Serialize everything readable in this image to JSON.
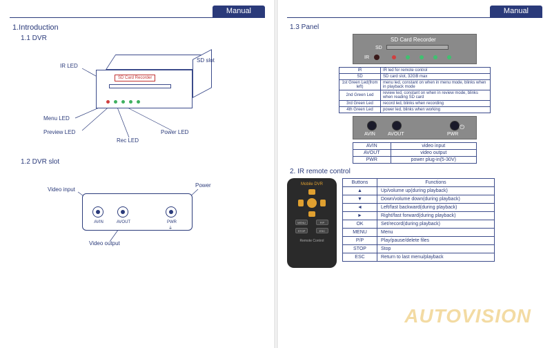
{
  "header": {
    "title": "Manual"
  },
  "left": {
    "sec1": "1.Introduction",
    "sub11": "1.1 DVR",
    "dvr": {
      "slot_title": "SD Card Recorder",
      "callouts": {
        "ir_led": "IR LED",
        "sd_slot": "SD slot",
        "menu_led": "Menu LED",
        "preview_led": "Preview LED",
        "rec_led": "Rec LED",
        "power_led": "Power LED"
      },
      "led_colors": [
        "#d04040",
        "#40b060",
        "#40b060",
        "#40b060",
        "#40b060"
      ]
    },
    "sub12": "1.2 DVR slot",
    "slot": {
      "video_in": "Video input",
      "video_out": "Video output",
      "power": "Power",
      "avin": "AVIN",
      "avout": "AVOUT",
      "pwr": "PWR"
    }
  },
  "right": {
    "sub13": "1.3 Panel",
    "front_panel": {
      "title": "SD Card Recorder",
      "ir": "IR",
      "sd": "SD",
      "led_colors": [
        "#d04040",
        "#40c070",
        "#40c070",
        "#40c070",
        "#40c070"
      ]
    },
    "led_table": [
      [
        "IR",
        "IR led for remote control"
      ],
      [
        "SD",
        "SD card slot, 32GB max"
      ],
      [
        "1st Green Led(from left)",
        "menu led, constant on when in menu mode,     blinks when in playback mode"
      ],
      [
        "2nd Green Led",
        "review led, constant on when in review mode,     blinks when reading SD card"
      ],
      [
        "3rd Green Led",
        "record led, blinks when recording"
      ],
      [
        "4th Green Led",
        "power led, blinks when working"
      ]
    ],
    "back_panel": {
      "avin": "AVIN",
      "avout": "AVOUT",
      "pwr": "PWR"
    },
    "io_table": [
      [
        "AVIN",
        "video input"
      ],
      [
        "AVOUT",
        "video output"
      ],
      [
        "PWR",
        "power plug-in(5-30V)"
      ]
    ],
    "sec2": "2. IR remote control",
    "remote": {
      "title": "Mobile DVR",
      "sub": "Remote Control",
      "btns": [
        "MENU",
        "P/P",
        "STOP",
        "ESC"
      ]
    },
    "func_table": {
      "head": [
        "Buttons",
        "Functions"
      ],
      "rows": [
        [
          "▲",
          "Up/volume up(during playback)"
        ],
        [
          "▼",
          "Down/volume down(during playback)"
        ],
        [
          "◄",
          "Left/fast backward(during playback)"
        ],
        [
          "►",
          "Right/fast forward(during playback)"
        ],
        [
          "OK",
          "Set/record(during playback)"
        ],
        [
          "MENU",
          "Menu"
        ],
        [
          "P/P",
          "Play/pause/delete files"
        ],
        [
          "STOP",
          "Stop"
        ],
        [
          "ESC",
          "Return to last menu/playback"
        ]
      ]
    },
    "watermark": "AUTOVISION"
  },
  "colors": {
    "primary": "#2a3a7a",
    "panel_gray": "#8a8a8a",
    "accent": "#e0a030"
  }
}
